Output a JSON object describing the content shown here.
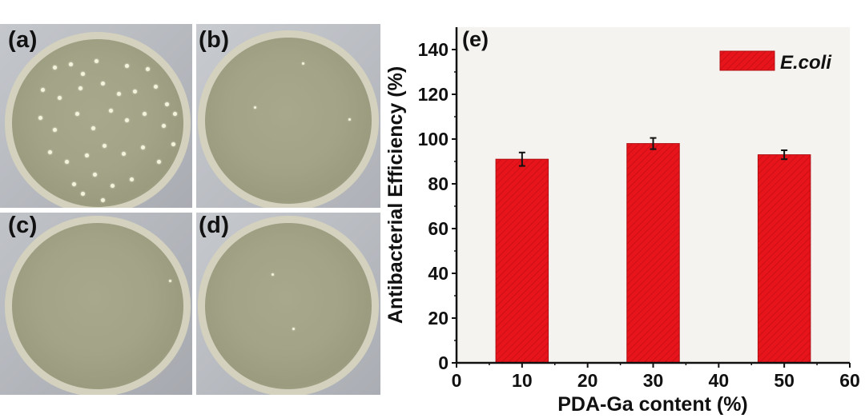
{
  "panels": [
    {
      "label": "(a)"
    },
    {
      "label": "(b)"
    },
    {
      "label": "(c)"
    },
    {
      "label": "(d)"
    }
  ],
  "chart_data": {
    "type": "bar",
    "panel_label": "(e)",
    "x": [
      10,
      30,
      50
    ],
    "values": [
      91,
      98,
      93
    ],
    "errors": [
      3,
      2.5,
      2
    ],
    "series": [
      {
        "name": "E.coli",
        "values": [
          91,
          98,
          93
        ],
        "color": "#e8141b"
      }
    ],
    "xlabel": "PDA-Ga content (%)",
    "ylabel": "Antibacterial Efficiency (%)",
    "xlim": [
      0,
      60
    ],
    "ylim": [
      0,
      150
    ],
    "xticks": [
      0,
      10,
      20,
      30,
      40,
      50,
      60
    ],
    "yticks": [
      0,
      20,
      40,
      60,
      80,
      100,
      120,
      140
    ],
    "bar_width": 8,
    "grid": false,
    "legend": "top-right"
  }
}
